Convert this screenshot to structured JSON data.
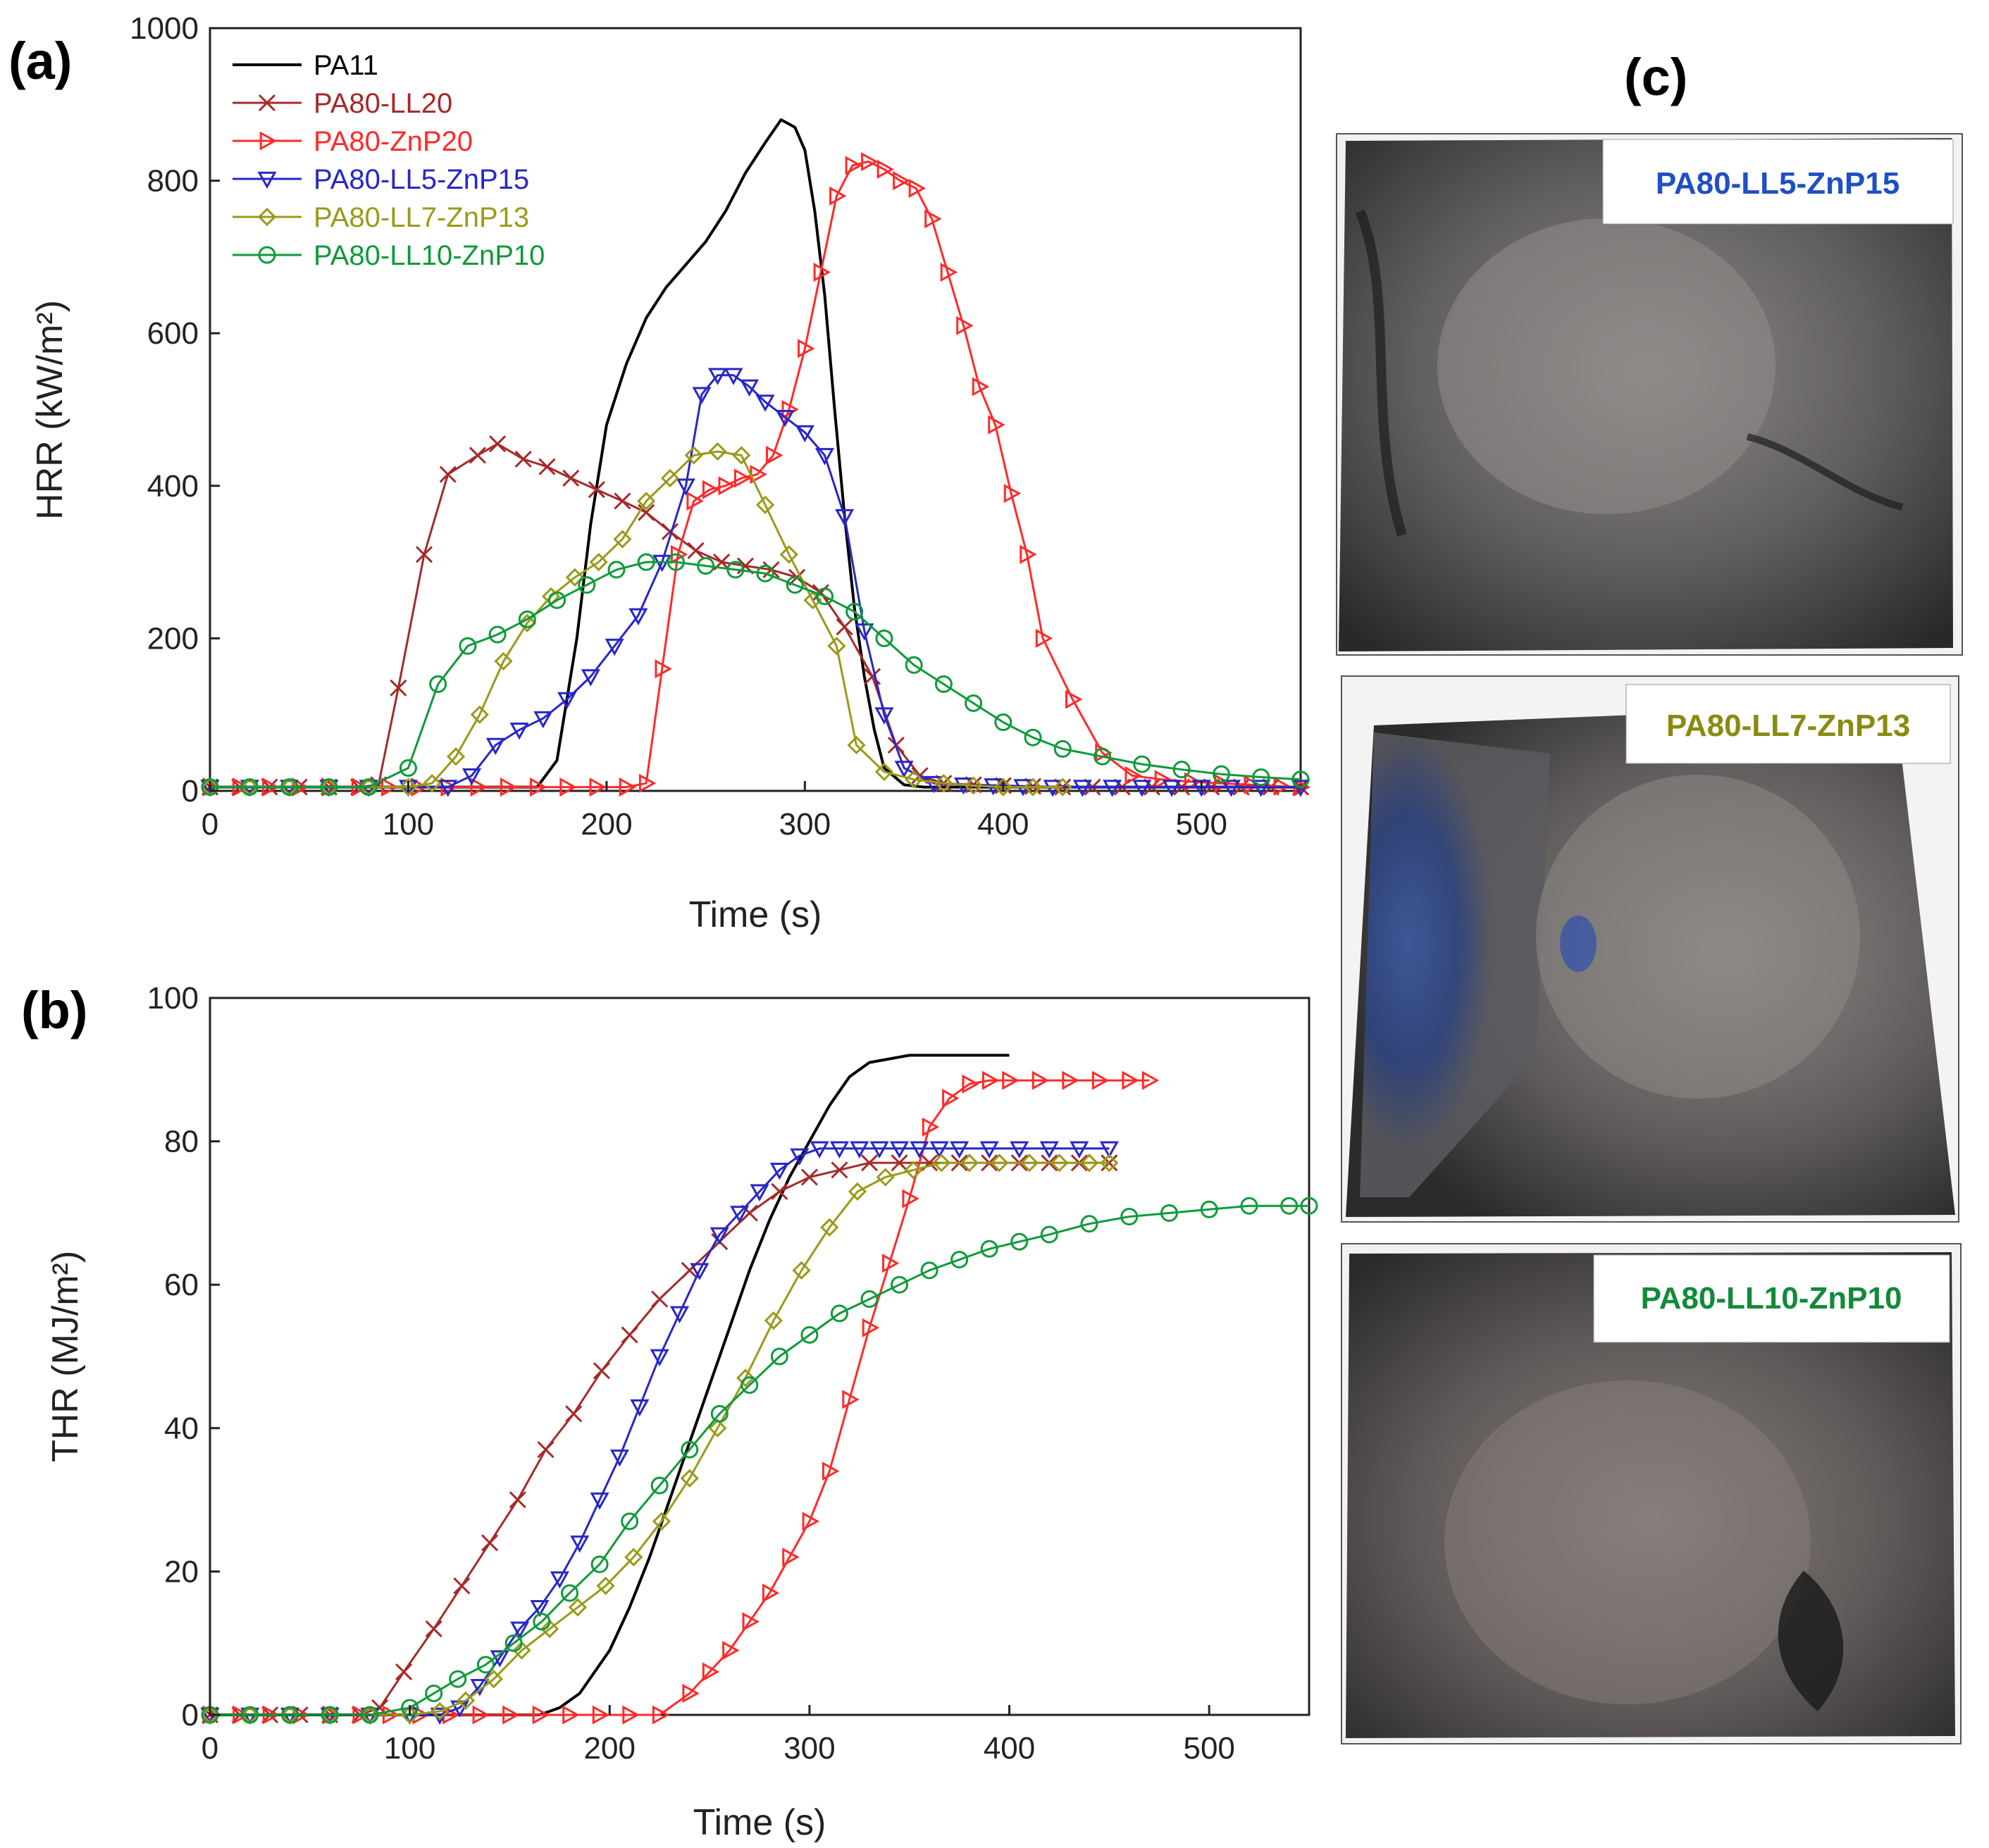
{
  "panels": {
    "a": "(a)",
    "b": "(b)",
    "c": "(c)"
  },
  "colors": {
    "PA11": "#000000",
    "PA80-LL20": "#a52a2a",
    "PA80-ZnP20": "#ff2a2a",
    "PA80-LL5-ZnP15": "#2727c8",
    "PA80-LL7-ZnP13": "#9a9a1a",
    "PA80-LL10-ZnP10": "#0f9a3a"
  },
  "photos": [
    {
      "label": "PA80-LL5-ZnP15",
      "label_color": "#1f4fc4",
      "surface": "soot-grey"
    },
    {
      "label": "PA80-LL7-ZnP13",
      "label_color": "#8a8a12",
      "surface": "grey-with-blue-residue"
    },
    {
      "label": "PA80-LL10-ZnP10",
      "label_color": "#128a3a",
      "surface": "soot-grey"
    }
  ],
  "chart_data": [
    {
      "type": "line",
      "panel": "(a)",
      "title": "",
      "xlabel": "Time (s)",
      "ylabel": "HRR (kW/m²)",
      "xlim": [
        0,
        550
      ],
      "ylim": [
        0,
        1000
      ],
      "xticks": [
        0,
        100,
        200,
        300,
        400,
        500
      ],
      "yticks": [
        0,
        200,
        400,
        600,
        800,
        1000
      ],
      "legend_position": "top-left",
      "series": [
        {
          "name": "PA11",
          "marker": "none",
          "x": [
            0,
            165,
            175,
            185,
            192,
            200,
            210,
            220,
            230,
            240,
            250,
            260,
            270,
            280,
            288,
            295,
            300,
            305,
            310,
            315,
            320,
            325,
            330,
            335,
            340,
            350,
            360,
            550
          ],
          "y": [
            5,
            5,
            40,
            200,
            350,
            480,
            560,
            620,
            660,
            690,
            720,
            760,
            810,
            850,
            880,
            870,
            840,
            760,
            650,
            500,
            360,
            240,
            150,
            80,
            30,
            8,
            5,
            5
          ]
        },
        {
          "name": "PA80-LL20",
          "marker": "x",
          "x": [
            0,
            15,
            30,
            45,
            60,
            75,
            85,
            95,
            108,
            120,
            135,
            145,
            158,
            170,
            182,
            195,
            208,
            220,
            232,
            245,
            258,
            270,
            283,
            296,
            308,
            320,
            334,
            346,
            358,
            370,
            385,
            400,
            415,
            430,
            445,
            460,
            475,
            490,
            505,
            520,
            535,
            550
          ],
          "y": [
            5,
            5,
            5,
            5,
            5,
            5,
            8,
            135,
            310,
            415,
            440,
            455,
            435,
            425,
            410,
            395,
            380,
            365,
            340,
            315,
            300,
            295,
            290,
            280,
            260,
            215,
            150,
            60,
            20,
            10,
            8,
            7,
            6,
            5,
            5,
            5,
            5,
            5,
            5,
            5,
            5,
            5
          ]
        },
        {
          "name": "PA80-ZnP20",
          "marker": "triangle-right",
          "x": [
            0,
            15,
            30,
            45,
            60,
            75,
            90,
            105,
            120,
            135,
            150,
            165,
            180,
            195,
            210,
            220,
            228,
            236,
            244,
            252,
            260,
            268,
            276,
            284,
            292,
            300,
            308,
            316,
            324,
            332,
            340,
            348,
            356,
            364,
            372,
            380,
            388,
            396,
            404,
            412,
            420,
            435,
            450,
            465,
            480,
            495,
            510,
            525,
            540,
            550
          ],
          "y": [
            5,
            5,
            5,
            5,
            5,
            5,
            5,
            5,
            5,
            5,
            5,
            5,
            5,
            5,
            5,
            10,
            160,
            310,
            380,
            395,
            400,
            410,
            415,
            440,
            500,
            580,
            680,
            780,
            820,
            825,
            815,
            800,
            790,
            750,
            680,
            610,
            530,
            480,
            390,
            310,
            200,
            120,
            50,
            20,
            15,
            12,
            10,
            8,
            6,
            5
          ]
        },
        {
          "name": "PA80-LL5-ZnP15",
          "marker": "triangle-down",
          "x": [
            0,
            20,
            40,
            60,
            80,
            100,
            120,
            132,
            144,
            156,
            168,
            180,
            192,
            204,
            216,
            228,
            240,
            248,
            256,
            264,
            272,
            280,
            290,
            300,
            310,
            320,
            330,
            340,
            350,
            365,
            380,
            395,
            410,
            425,
            440,
            455,
            470,
            485,
            500,
            515,
            530,
            550
          ],
          "y": [
            5,
            5,
            5,
            5,
            5,
            5,
            5,
            20,
            60,
            80,
            95,
            120,
            150,
            190,
            230,
            300,
            400,
            520,
            545,
            545,
            530,
            510,
            490,
            470,
            440,
            360,
            210,
            100,
            30,
            10,
            8,
            7,
            6,
            5,
            5,
            5,
            5,
            5,
            5,
            5,
            5,
            5
          ]
        },
        {
          "name": "PA80-LL7-ZnP13",
          "marker": "diamond",
          "x": [
            0,
            20,
            40,
            60,
            80,
            100,
            112,
            124,
            136,
            148,
            160,
            172,
            184,
            196,
            208,
            220,
            232,
            244,
            256,
            268,
            280,
            292,
            304,
            316,
            326,
            340,
            355,
            370,
            385,
            400,
            415,
            430
          ],
          "y": [
            5,
            5,
            5,
            5,
            5,
            5,
            10,
            45,
            100,
            170,
            220,
            255,
            280,
            300,
            330,
            380,
            410,
            440,
            445,
            440,
            375,
            310,
            250,
            190,
            60,
            25,
            15,
            10,
            7,
            5,
            5,
            5
          ]
        },
        {
          "name": "PA80-LL10-ZnP10",
          "marker": "circle",
          "x": [
            0,
            20,
            40,
            60,
            80,
            100,
            115,
            130,
            145,
            160,
            175,
            190,
            205,
            220,
            235,
            250,
            265,
            280,
            295,
            310,
            325,
            340,
            355,
            370,
            385,
            400,
            415,
            430,
            450,
            470,
            490,
            510,
            530,
            550
          ],
          "y": [
            5,
            5,
            5,
            5,
            5,
            30,
            140,
            190,
            205,
            225,
            250,
            270,
            290,
            300,
            300,
            295,
            290,
            285,
            270,
            255,
            235,
            200,
            165,
            140,
            115,
            90,
            70,
            55,
            45,
            35,
            28,
            22,
            18,
            15
          ]
        }
      ]
    },
    {
      "type": "line",
      "panel": "(b)",
      "title": "",
      "xlabel": "Time (s)",
      "ylabel": "THR (MJ/m²)",
      "xlim": [
        0,
        550
      ],
      "ylim": [
        0,
        100
      ],
      "xticks": [
        0,
        100,
        200,
        300,
        400,
        500
      ],
      "yticks": [
        0,
        20,
        40,
        60,
        80,
        100
      ],
      "series": [
        {
          "name": "PA11",
          "marker": "none",
          "x": [
            0,
            165,
            170,
            175,
            180,
            185,
            190,
            200,
            210,
            220,
            230,
            240,
            250,
            260,
            270,
            280,
            290,
            300,
            310,
            320,
            330,
            340,
            350,
            360,
            370,
            380,
            390,
            400
          ],
          "y": [
            0,
            0,
            0.5,
            1,
            2,
            3,
            5,
            9,
            15,
            22,
            30,
            38,
            46,
            54,
            62,
            69,
            75,
            80,
            85,
            89,
            91,
            91.5,
            92,
            92,
            92,
            92,
            92,
            92
          ]
        },
        {
          "name": "PA80-LL20",
          "marker": "x",
          "x": [
            0,
            15,
            30,
            45,
            60,
            75,
            85,
            97,
            112,
            126,
            140,
            154,
            168,
            182,
            196,
            210,
            225,
            240,
            255,
            270,
            285,
            300,
            315,
            330,
            345,
            360,
            375,
            390,
            405,
            420,
            435,
            450
          ],
          "y": [
            0,
            0,
            0,
            0,
            0,
            0,
            1,
            6,
            12,
            18,
            24,
            30,
            37,
            42,
            48,
            53,
            58,
            62,
            66,
            70,
            73,
            75,
            76,
            77,
            77,
            77,
            77,
            77,
            77,
            77,
            77,
            77
          ]
        },
        {
          "name": "PA80-ZnP20",
          "marker": "triangle-right",
          "x": [
            0,
            15,
            30,
            45,
            60,
            75,
            90,
            105,
            120,
            135,
            150,
            165,
            180,
            195,
            210,
            225,
            240,
            250,
            260,
            270,
            280,
            290,
            300,
            310,
            320,
            330,
            340,
            350,
            360,
            370,
            380,
            390,
            400,
            415,
            430,
            445,
            460,
            470
          ],
          "y": [
            0,
            0,
            0,
            0,
            0,
            0,
            0,
            0,
            0,
            0,
            0,
            0,
            0,
            0,
            0,
            0,
            3,
            6,
            9,
            13,
            17,
            22,
            27,
            34,
            44,
            54,
            63,
            72,
            82,
            86,
            88,
            88.5,
            88.5,
            88.5,
            88.5,
            88.5,
            88.5,
            88.5
          ]
        },
        {
          "name": "PA80-LL5-ZnP15",
          "marker": "triangle-down",
          "x": [
            0,
            20,
            40,
            60,
            80,
            100,
            115,
            125,
            135,
            145,
            155,
            165,
            175,
            185,
            195,
            205,
            215,
            225,
            235,
            245,
            255,
            265,
            275,
            285,
            295,
            305,
            315,
            325,
            335,
            345,
            355,
            365,
            375,
            390,
            405,
            420,
            435,
            450
          ],
          "y": [
            0,
            0,
            0,
            0,
            0,
            0,
            0,
            1,
            4,
            8,
            12,
            15,
            19,
            24,
            30,
            36,
            43,
            50,
            56,
            62,
            67,
            70,
            73,
            76,
            78,
            79,
            79,
            79,
            79,
            79,
            79,
            79,
            79,
            79,
            79,
            79,
            79,
            79
          ]
        },
        {
          "name": "PA80-LL7-ZnP13",
          "marker": "diamond",
          "x": [
            0,
            20,
            40,
            60,
            80,
            100,
            115,
            128,
            142,
            156,
            170,
            184,
            198,
            212,
            226,
            240,
            254,
            268,
            282,
            296,
            310,
            324,
            338,
            352,
            366,
            380,
            395,
            410,
            425,
            440,
            450
          ],
          "y": [
            0,
            0,
            0,
            0,
            0,
            0,
            0.5,
            2,
            5,
            9,
            12,
            15,
            18,
            22,
            27,
            33,
            40,
            47,
            55,
            62,
            68,
            73,
            75,
            76,
            77,
            77,
            77,
            77,
            77,
            77,
            77
          ]
        },
        {
          "name": "PA80-LL10-ZnP10",
          "marker": "circle",
          "x": [
            0,
            20,
            40,
            60,
            80,
            100,
            112,
            124,
            138,
            152,
            166,
            180,
            195,
            210,
            225,
            240,
            255,
            270,
            285,
            300,
            315,
            330,
            345,
            360,
            375,
            390,
            405,
            420,
            440,
            460,
            480,
            500,
            520,
            540,
            550
          ],
          "y": [
            0,
            0,
            0,
            0,
            0,
            1,
            3,
            5,
            7,
            10,
            13,
            17,
            21,
            27,
            32,
            37,
            42,
            46,
            50,
            53,
            56,
            58,
            60,
            62,
            63.5,
            65,
            66,
            67,
            68.5,
            69.5,
            70,
            70.5,
            71,
            71,
            71
          ]
        }
      ]
    }
  ]
}
